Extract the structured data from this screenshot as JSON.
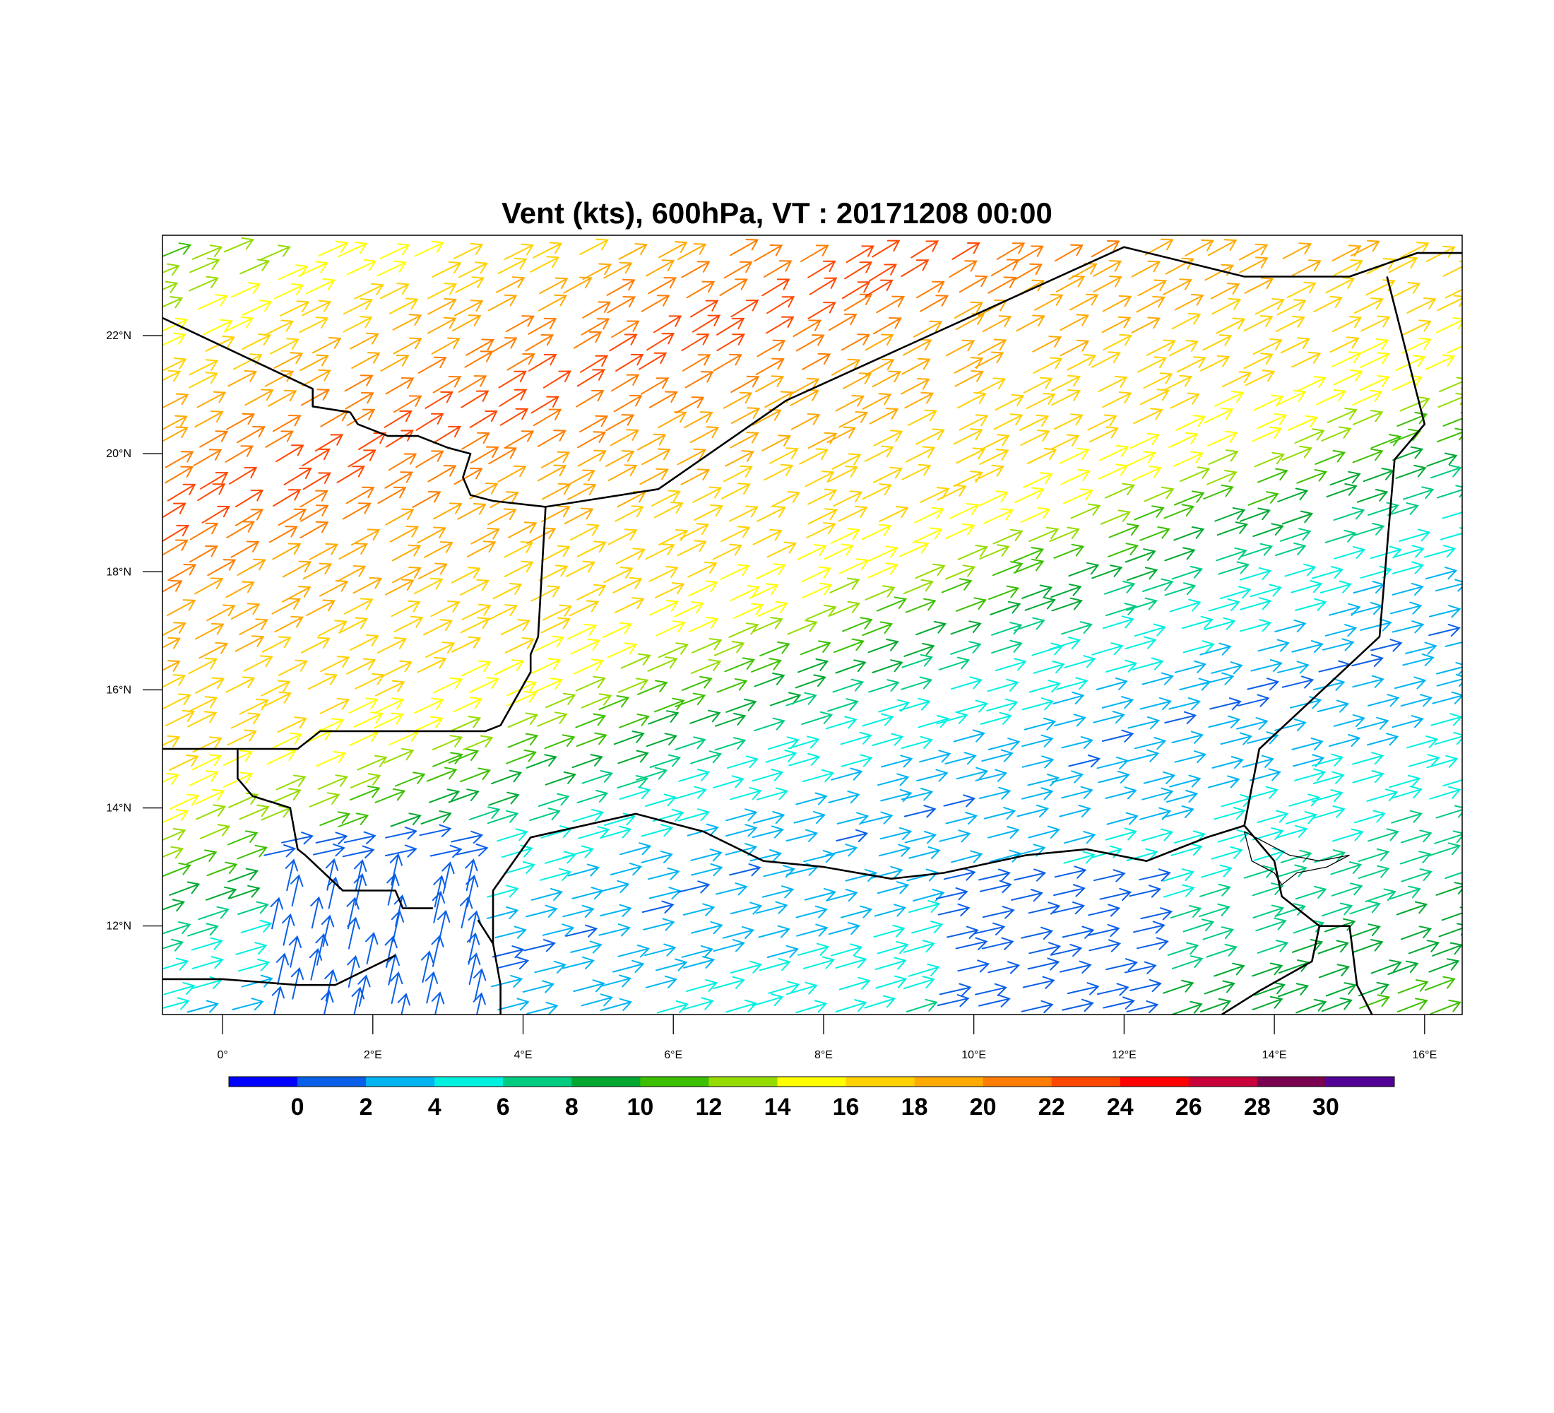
{
  "title": "Vent (kts), 600hPa, VT : 20171208  00:00",
  "map": {
    "lon_range": [
      -0.8,
      16.5
    ],
    "lat_range": [
      10.5,
      23.7
    ],
    "lat_ticks": [
      {
        "value": 22,
        "label": "22°N"
      },
      {
        "value": 20,
        "label": "20°N"
      },
      {
        "value": 18,
        "label": "18°N"
      },
      {
        "value": 16,
        "label": "16°N"
      },
      {
        "value": 14,
        "label": "14°N"
      },
      {
        "value": 12,
        "label": "12°N"
      }
    ],
    "lon_ticks": [
      {
        "value": 0,
        "label": "0°"
      },
      {
        "value": 2,
        "label": "2°E"
      },
      {
        "value": 4,
        "label": "4°E"
      },
      {
        "value": 6,
        "label": "6°E"
      },
      {
        "value": 8,
        "label": "8°E"
      },
      {
        "value": 10,
        "label": "10°E"
      },
      {
        "value": 12,
        "label": "12°E"
      },
      {
        "value": 14,
        "label": "14°E"
      },
      {
        "value": 16,
        "label": "16°E"
      }
    ],
    "borders": [
      [
        [
          -0.8,
          22.3
        ],
        [
          1.2,
          21.1
        ],
        [
          1.2,
          20.8
        ],
        [
          1.7,
          20.7
        ],
        [
          1.8,
          20.5
        ],
        [
          2.2,
          20.3
        ],
        [
          2.6,
          20.3
        ],
        [
          3.0,
          20.1
        ],
        [
          3.3,
          20.0
        ],
        [
          3.2,
          19.6
        ],
        [
          3.3,
          19.3
        ],
        [
          3.6,
          19.2
        ],
        [
          4.3,
          19.1
        ],
        [
          5.8,
          19.4
        ],
        [
          7.5,
          20.9
        ],
        [
          12.0,
          23.5
        ],
        [
          13.6,
          23.0
        ],
        [
          15.0,
          23.0
        ],
        [
          15.9,
          23.4
        ],
        [
          16.5,
          23.4
        ]
      ],
      [
        [
          4.3,
          19.1
        ],
        [
          4.2,
          16.9
        ],
        [
          4.1,
          16.6
        ],
        [
          4.1,
          16.3
        ],
        [
          3.7,
          15.4
        ],
        [
          3.5,
          15.3
        ],
        [
          2.0,
          15.3
        ],
        [
          1.3,
          15.3
        ],
        [
          1.0,
          15.0
        ],
        [
          0.1,
          15.0
        ],
        [
          -0.8,
          15.0
        ]
      ],
      [
        [
          0.2,
          15.0
        ],
        [
          0.2,
          14.5
        ],
        [
          0.4,
          14.2
        ],
        [
          0.9,
          14.0
        ],
        [
          1.0,
          13.3
        ],
        [
          1.1,
          13.2
        ],
        [
          1.6,
          12.6
        ],
        [
          2.3,
          12.6
        ],
        [
          2.4,
          12.3
        ],
        [
          2.8,
          12.3
        ]
      ],
      [
        [
          3.4,
          12.1
        ],
        [
          3.6,
          11.7
        ],
        [
          3.7,
          11.0
        ],
        [
          3.7,
          10.5
        ]
      ],
      [
        [
          3.6,
          11.7
        ],
        [
          3.6,
          12.6
        ],
        [
          4.1,
          13.5
        ],
        [
          5.5,
          13.9
        ],
        [
          6.4,
          13.6
        ],
        [
          7.2,
          13.1
        ],
        [
          8.0,
          13.0
        ],
        [
          8.9,
          12.8
        ],
        [
          9.6,
          12.9
        ],
        [
          10.7,
          13.2
        ],
        [
          11.5,
          13.3
        ],
        [
          12.3,
          13.1
        ],
        [
          13.1,
          13.5
        ],
        [
          13.6,
          13.7
        ]
      ],
      [
        [
          15.5,
          23.0
        ],
        [
          16.0,
          20.5
        ],
        [
          15.6,
          19.9
        ],
        [
          15.4,
          16.9
        ],
        [
          13.8,
          15.0
        ],
        [
          13.6,
          13.7
        ]
      ],
      [
        [
          13.6,
          13.7
        ],
        [
          14.0,
          13.1
        ],
        [
          14.1,
          12.5
        ],
        [
          14.6,
          12.0
        ],
        [
          14.5,
          11.4
        ],
        [
          13.8,
          10.9
        ],
        [
          13.3,
          10.5
        ]
      ],
      [
        [
          14.6,
          12.0
        ],
        [
          15.0,
          12.0
        ],
        [
          15.1,
          11.0
        ],
        [
          15.3,
          10.5
        ]
      ],
      [
        [
          -0.8,
          11.1
        ],
        [
          0.0,
          11.1
        ],
        [
          1.0,
          11.0
        ],
        [
          1.5,
          11.0
        ],
        [
          2.3,
          11.5
        ]
      ]
    ],
    "lakes": [
      [
        [
          13.6,
          13.6
        ],
        [
          13.9,
          13.4
        ],
        [
          14.2,
          13.2
        ],
        [
          14.6,
          13.1
        ],
        [
          15.0,
          13.2
        ],
        [
          14.7,
          13.0
        ],
        [
          14.3,
          12.9
        ],
        [
          14.1,
          12.7
        ],
        [
          14.0,
          12.9
        ],
        [
          13.7,
          13.1
        ],
        [
          13.6,
          13.6
        ]
      ]
    ]
  },
  "colorbar": {
    "colors": [
      "#0000ff",
      "#0a5fe8",
      "#00b4f2",
      "#00f0e0",
      "#00cc80",
      "#00a832",
      "#3cc000",
      "#96dc00",
      "#ffff00",
      "#ffd200",
      "#ffaa00",
      "#ff7d00",
      "#ff4800",
      "#ff0000",
      "#c8003a",
      "#7a0050",
      "#520096"
    ],
    "labels": [
      "0",
      "2",
      "4",
      "6",
      "8",
      "10",
      "12",
      "14",
      "16",
      "18",
      "20",
      "22",
      "24",
      "26",
      "28",
      "30"
    ]
  }
}
